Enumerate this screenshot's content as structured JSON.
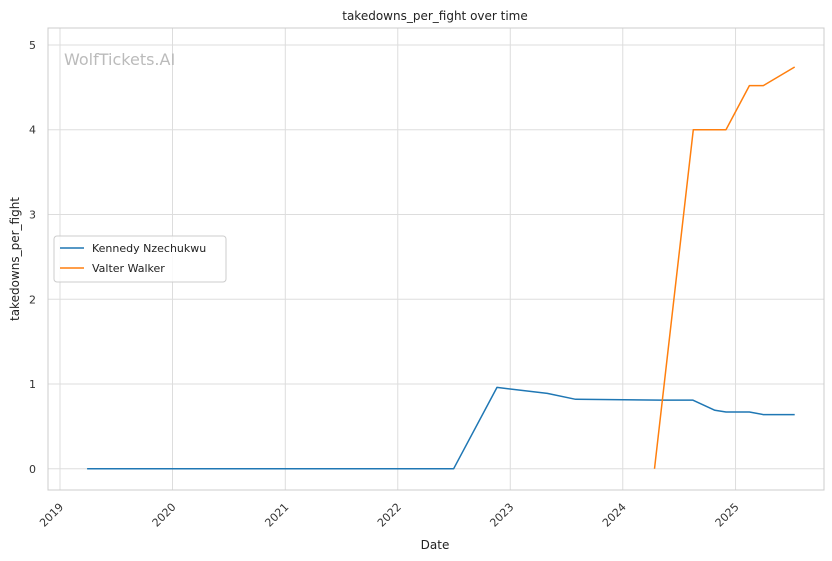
{
  "chart_data": {
    "type": "line",
    "title": "takedowns_per_fight over time",
    "xlabel": "Date",
    "ylabel": "takedowns_per_fight",
    "watermark": "WolfTickets.AI",
    "xlim": [
      "2018-11-23",
      "2025-10-15"
    ],
    "ylim": [
      -0.25,
      5.2
    ],
    "x_ticks": [
      "2019-01-01",
      "2020-01-01",
      "2021-01-01",
      "2022-01-01",
      "2023-01-01",
      "2024-01-01",
      "2025-01-01"
    ],
    "x_tick_labels": [
      "2019",
      "2020",
      "2021",
      "2022",
      "2023",
      "2024",
      "2025"
    ],
    "y_ticks": [
      0,
      1,
      2,
      3,
      4,
      5
    ],
    "y_tick_labels": [
      "0",
      "1",
      "2",
      "3",
      "4",
      "5"
    ],
    "grid": true,
    "legend_position": "center-left",
    "series": [
      {
        "name": "Kennedy Nzechukwu",
        "color": "#1f77b4",
        "points": [
          [
            "2019-03-30",
            0.0
          ],
          [
            "2022-07-01",
            0.0
          ],
          [
            "2022-11-19",
            0.96
          ],
          [
            "2023-05-01",
            0.89
          ],
          [
            "2023-08-01",
            0.82
          ],
          [
            "2024-05-01",
            0.81
          ],
          [
            "2024-08-15",
            0.81
          ],
          [
            "2024-10-26",
            0.69
          ],
          [
            "2024-12-01",
            0.67
          ],
          [
            "2025-02-15",
            0.67
          ],
          [
            "2025-04-01",
            0.64
          ],
          [
            "2025-07-12",
            0.64
          ]
        ]
      },
      {
        "name": "Valter Walker",
        "color": "#ff7f0e",
        "points": [
          [
            "2024-04-13",
            0.0
          ],
          [
            "2024-08-17",
            4.0
          ],
          [
            "2024-12-01",
            4.0
          ],
          [
            "2025-02-15",
            4.52
          ],
          [
            "2025-04-01",
            4.52
          ],
          [
            "2025-07-12",
            4.74
          ]
        ]
      }
    ]
  }
}
